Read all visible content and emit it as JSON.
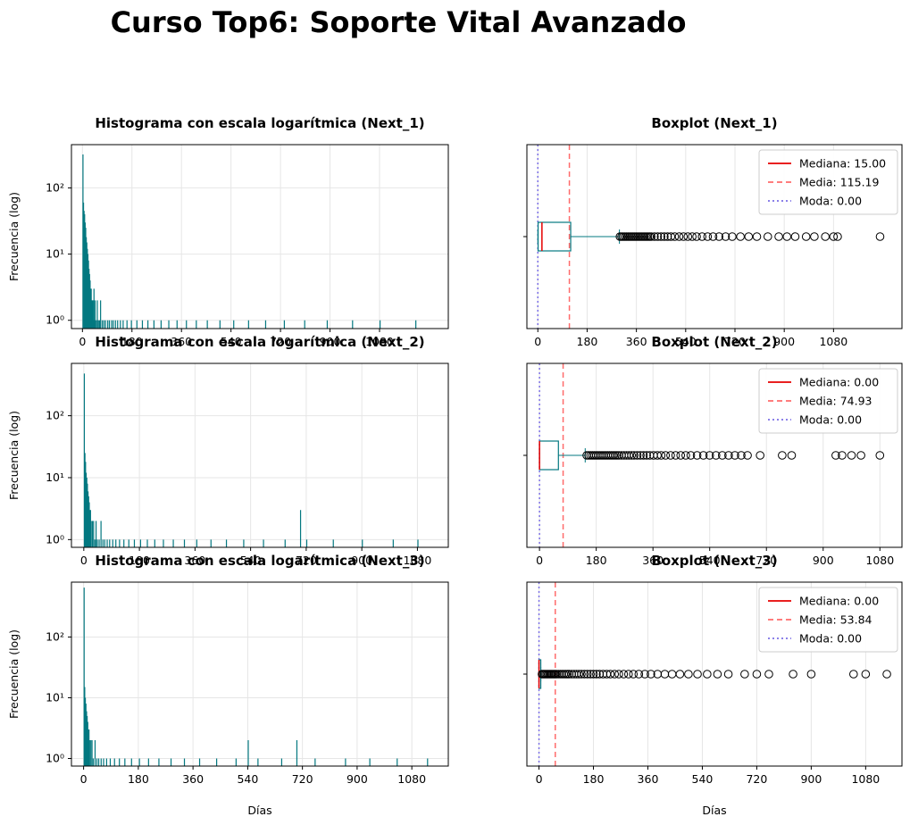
{
  "figure": {
    "title": "Curso Top6: Soporte Vital Avanzado"
  },
  "colors": {
    "bar": "#037880",
    "box": "#037880",
    "median": "#e60000",
    "mean": "#ff6b6b",
    "mode": "#7b6fe6",
    "grid": "#e6e6e6"
  },
  "labels": {
    "xlabel": "Días",
    "ylabel": "Frecuencia (log)",
    "legend_median": "Mediana",
    "legend_mean": "Media",
    "legend_mode": "Moda"
  },
  "chart_data": [
    {
      "type": "bar",
      "title": "Histograma con escala logarítmica (Next_1)",
      "xlabel": "",
      "ylabel": "Frecuencia (log)",
      "yscale": "log",
      "ylim": [
        0.75,
        450
      ],
      "xlim": [
        -40,
        1330
      ],
      "xticks": [
        0,
        180,
        360,
        540,
        720,
        900,
        1080
      ],
      "yticks": [
        "10⁰",
        "10¹",
        "10²"
      ],
      "bars": [
        [
          0,
          320
        ],
        [
          2,
          60
        ],
        [
          4,
          45
        ],
        [
          6,
          40
        ],
        [
          8,
          30
        ],
        [
          10,
          25
        ],
        [
          12,
          18
        ],
        [
          14,
          15
        ],
        [
          16,
          12
        ],
        [
          18,
          10
        ],
        [
          20,
          8
        ],
        [
          22,
          6
        ],
        [
          24,
          5
        ],
        [
          26,
          4
        ],
        [
          28,
          3
        ],
        [
          30,
          3
        ],
        [
          32,
          2
        ],
        [
          34,
          2
        ],
        [
          36,
          2
        ],
        [
          38,
          2
        ],
        [
          40,
          3
        ],
        [
          42,
          1
        ],
        [
          44,
          2
        ],
        [
          48,
          1
        ],
        [
          52,
          2
        ],
        [
          56,
          1
        ],
        [
          60,
          1
        ],
        [
          64,
          2
        ],
        [
          70,
          1
        ],
        [
          76,
          1
        ],
        [
          82,
          1
        ],
        [
          90,
          1
        ],
        [
          96,
          1
        ],
        [
          104,
          1
        ],
        [
          110,
          1
        ],
        [
          118,
          1
        ],
        [
          126,
          1
        ],
        [
          136,
          1
        ],
        [
          146,
          1
        ],
        [
          160,
          1
        ],
        [
          176,
          1
        ],
        [
          196,
          1
        ],
        [
          216,
          1
        ],
        [
          236,
          1
        ],
        [
          258,
          1
        ],
        [
          284,
          1
        ],
        [
          312,
          1
        ],
        [
          342,
          1
        ],
        [
          376,
          1
        ],
        [
          412,
          1
        ],
        [
          452,
          1
        ],
        [
          498,
          1
        ],
        [
          548,
          1
        ],
        [
          602,
          1
        ],
        [
          664,
          1
        ],
        [
          732,
          1
        ],
        [
          806,
          1
        ],
        [
          888,
          1
        ],
        [
          980,
          1
        ],
        [
          1080,
          1
        ],
        [
          1210,
          1
        ]
      ],
      "grid": true
    },
    {
      "type": "boxplot",
      "title": "Boxplot (Next_1)",
      "xlabel": "",
      "xlim": [
        -40,
        1330
      ],
      "xticks": [
        0,
        180,
        360,
        540,
        720,
        900,
        1080
      ],
      "q1": 1,
      "q3": 120,
      "whisker_low": 0,
      "whisker_high": 298,
      "median": 15.0,
      "mean": 115.19,
      "mode": 0.0,
      "legend": [
        "Mediana: 15.00",
        "Media: 115.19",
        "Moda: 0.00"
      ],
      "outliers": [
        300,
        306,
        312,
        318,
        324,
        330,
        336,
        342,
        348,
        354,
        360,
        366,
        372,
        378,
        384,
        390,
        396,
        402,
        408,
        414,
        426,
        438,
        450,
        462,
        474,
        486,
        500,
        516,
        532,
        548,
        564,
        580,
        600,
        620,
        640,
        662,
        686,
        710,
        740,
        770,
        800,
        840,
        880,
        910,
        940,
        980,
        1010,
        1050,
        1080,
        1095,
        1250
      ],
      "grid": true
    },
    {
      "type": "bar",
      "title": "Histograma con escala logarítmica (Next_2)",
      "xlabel": "",
      "ylabel": "Frecuencia (log)",
      "yscale": "log",
      "ylim": [
        0.75,
        700
      ],
      "xlim": [
        -40,
        1180
      ],
      "xticks": [
        0,
        180,
        360,
        540,
        720,
        900,
        1080
      ],
      "yticks": [
        "10⁰",
        "10¹",
        "10²"
      ],
      "bars": [
        [
          0,
          480
        ],
        [
          2,
          25
        ],
        [
          4,
          18
        ],
        [
          6,
          12
        ],
        [
          8,
          10
        ],
        [
          10,
          8
        ],
        [
          12,
          6
        ],
        [
          14,
          5
        ],
        [
          16,
          4
        ],
        [
          18,
          3
        ],
        [
          20,
          3
        ],
        [
          22,
          2
        ],
        [
          26,
          2
        ],
        [
          30,
          2
        ],
        [
          34,
          1
        ],
        [
          38,
          2
        ],
        [
          42,
          1
        ],
        [
          48,
          1
        ],
        [
          54,
          2
        ],
        [
          60,
          1
        ],
        [
          66,
          1
        ],
        [
          74,
          1
        ],
        [
          82,
          1
        ],
        [
          92,
          1
        ],
        [
          102,
          1
        ],
        [
          114,
          1
        ],
        [
          128,
          1
        ],
        [
          144,
          1
        ],
        [
          162,
          1
        ],
        [
          182,
          1
        ],
        [
          204,
          1
        ],
        [
          228,
          1
        ],
        [
          256,
          1
        ],
        [
          288,
          1
        ],
        [
          324,
          1
        ],
        [
          364,
          1
        ],
        [
          410,
          1
        ],
        [
          460,
          1
        ],
        [
          516,
          1
        ],
        [
          580,
          1
        ],
        [
          650,
          1
        ],
        [
          700,
          3
        ],
        [
          720,
          1
        ],
        [
          806,
          1
        ],
        [
          900,
          1
        ],
        [
          1000,
          1
        ],
        [
          1080,
          1
        ]
      ],
      "grid": true
    },
    {
      "type": "boxplot",
      "title": "Boxplot (Next_2)",
      "xlabel": "",
      "xlim": [
        -40,
        1150
      ],
      "xticks": [
        0,
        180,
        360,
        540,
        720,
        900,
        1080
      ],
      "q1": 0,
      "q3": 60,
      "whisker_low": 0,
      "whisker_high": 145,
      "median": 0.0,
      "mean": 74.93,
      "mode": 0.0,
      "legend": [
        "Mediana: 0.00",
        "Media: 74.93",
        "Moda: 0.00"
      ],
      "outliers": [
        150,
        156,
        162,
        168,
        174,
        180,
        186,
        192,
        198,
        204,
        210,
        216,
        222,
        228,
        234,
        240,
        246,
        252,
        260,
        268,
        276,
        284,
        292,
        300,
        310,
        320,
        330,
        340,
        350,
        362,
        374,
        386,
        400,
        416,
        432,
        448,
        464,
        480,
        500,
        520,
        540,
        560,
        580,
        600,
        620,
        640,
        660,
        700,
        770,
        800,
        940,
        960,
        990,
        1020,
        1080
      ],
      "grid": true
    },
    {
      "type": "bar",
      "title": "Histograma con escala logarítmica (Next_3)",
      "xlabel": "Días",
      "ylabel": "Frecuencia (log)",
      "yscale": "log",
      "ylim": [
        0.75,
        800
      ],
      "xlim": [
        -40,
        1200
      ],
      "xticks": [
        0,
        180,
        360,
        540,
        720,
        900,
        1080
      ],
      "yticks": [
        "10⁰",
        "10¹",
        "10²"
      ],
      "bars": [
        [
          0,
          650
        ],
        [
          2,
          15
        ],
        [
          4,
          10
        ],
        [
          6,
          8
        ],
        [
          8,
          6
        ],
        [
          10,
          5
        ],
        [
          12,
          4
        ],
        [
          14,
          3
        ],
        [
          16,
          3
        ],
        [
          18,
          2
        ],
        [
          22,
          2
        ],
        [
          26,
          2
        ],
        [
          30,
          1
        ],
        [
          36,
          2
        ],
        [
          42,
          1
        ],
        [
          48,
          1
        ],
        [
          56,
          1
        ],
        [
          64,
          1
        ],
        [
          74,
          1
        ],
        [
          86,
          1
        ],
        [
          100,
          1
        ],
        [
          116,
          1
        ],
        [
          134,
          1
        ],
        [
          156,
          1
        ],
        [
          182,
          1
        ],
        [
          212,
          1
        ],
        [
          246,
          1
        ],
        [
          286,
          1
        ],
        [
          330,
          1
        ],
        [
          380,
          1
        ],
        [
          436,
          1
        ],
        [
          500,
          1
        ],
        [
          540,
          2
        ],
        [
          572,
          1
        ],
        [
          650,
          1
        ],
        [
          700,
          2
        ],
        [
          760,
          1
        ],
        [
          860,
          1
        ],
        [
          940,
          1
        ],
        [
          1030,
          1
        ],
        [
          1130,
          1
        ]
      ],
      "grid": true
    },
    {
      "type": "boxplot",
      "title": "Boxplot (Next_3)",
      "xlabel": "Días",
      "xlim": [
        -40,
        1200
      ],
      "xticks": [
        0,
        180,
        360,
        540,
        720,
        900,
        1080
      ],
      "q1": 0,
      "q3": 3,
      "whisker_low": 0,
      "whisker_high": 6,
      "median": 0.0,
      "mean": 53.84,
      "mode": 0.0,
      "legend": [
        "Mediana: 0.00",
        "Media: 53.84",
        "Moda: 0.00"
      ],
      "outliers": [
        10,
        14,
        18,
        22,
        26,
        30,
        34,
        38,
        42,
        46,
        50,
        54,
        58,
        64,
        70,
        76,
        82,
        88,
        94,
        100,
        108,
        116,
        124,
        132,
        140,
        150,
        160,
        170,
        180,
        190,
        200,
        212,
        224,
        236,
        250,
        264,
        280,
        296,
        312,
        330,
        350,
        370,
        392,
        416,
        440,
        466,
        494,
        524,
        556,
        590,
        626,
        680,
        720,
        760,
        840,
        900,
        1040,
        1080,
        1150
      ],
      "grid": true
    }
  ]
}
